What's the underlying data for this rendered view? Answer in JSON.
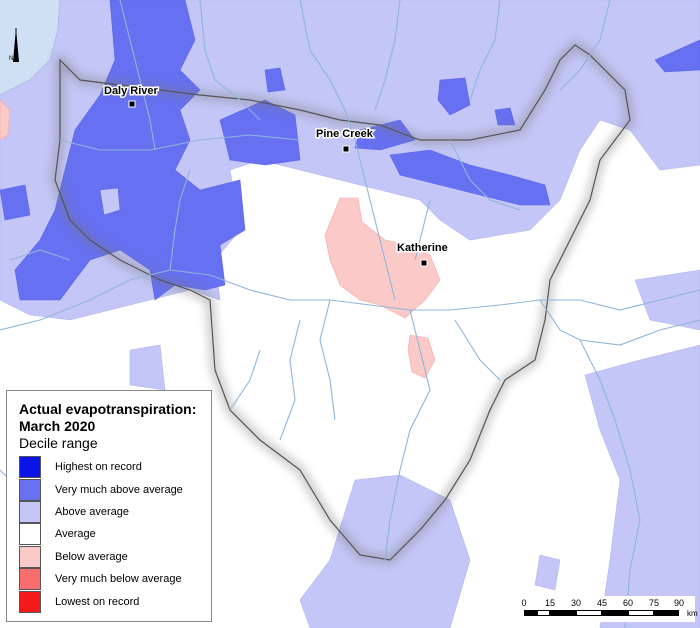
{
  "map": {
    "towns": [
      {
        "name": "Daly River"
      },
      {
        "name": "Pine Creek"
      },
      {
        "name": "Katherine"
      }
    ],
    "north_arrow_label": "N"
  },
  "legend": {
    "title_line1": "Actual evapotranspiration:",
    "title_line2": "March 2020",
    "subtitle": "Decile range",
    "items": [
      {
        "label": "Highest on record",
        "color": "#0a14e6"
      },
      {
        "label": "Very much above average",
        "color": "#6670f0"
      },
      {
        "label": "Above average",
        "color": "#c3c6f6"
      },
      {
        "label": "Average",
        "color": "#ffffff"
      },
      {
        "label": "Below average",
        "color": "#fcc9c9"
      },
      {
        "label": "Very much below average",
        "color": "#f86e6e"
      },
      {
        "label": "Lowest on record",
        "color": "#f51a1a"
      }
    ]
  },
  "scalebar": {
    "ticks": [
      "0",
      "15",
      "30",
      "45",
      "60",
      "75",
      "90"
    ],
    "unit": "km"
  }
}
